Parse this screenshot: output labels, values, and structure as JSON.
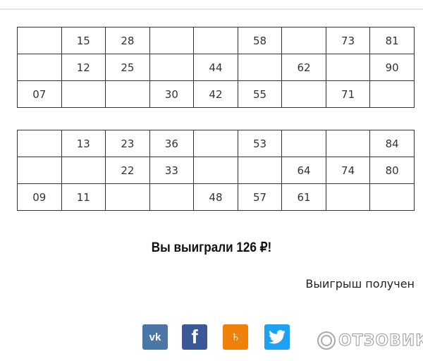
{
  "tickets": [
    [
      [
        "",
        "15",
        "28",
        "",
        "",
        "58",
        "",
        "73",
        "81"
      ],
      [
        "",
        "12",
        "25",
        "",
        "44",
        "",
        "62",
        "",
        "90"
      ],
      [
        "07",
        "",
        "",
        "30",
        "42",
        "55",
        "",
        "71",
        ""
      ]
    ],
    [
      [
        "",
        "13",
        "23",
        "36",
        "",
        "53",
        "",
        "",
        "84"
      ],
      [
        "",
        "",
        "22",
        "33",
        "",
        "",
        "64",
        "74",
        "80"
      ],
      [
        "09",
        "11",
        "",
        "",
        "48",
        "57",
        "61",
        "",
        ""
      ]
    ]
  ],
  "result": {
    "win_text": "Вы выиграли 126 ₽!",
    "status": "Выигрыш получен"
  },
  "share": [
    {
      "name": "vk",
      "label": "vk",
      "color": "#4a76a8"
    },
    {
      "name": "facebook",
      "label": "f",
      "color": "#3b5998"
    },
    {
      "name": "odnoklassniki",
      "label": "ok",
      "color": "#ee8208"
    },
    {
      "name": "twitter",
      "label": "tw",
      "color": "#1da1f2"
    }
  ],
  "watermark": "ОТЗОВИК"
}
